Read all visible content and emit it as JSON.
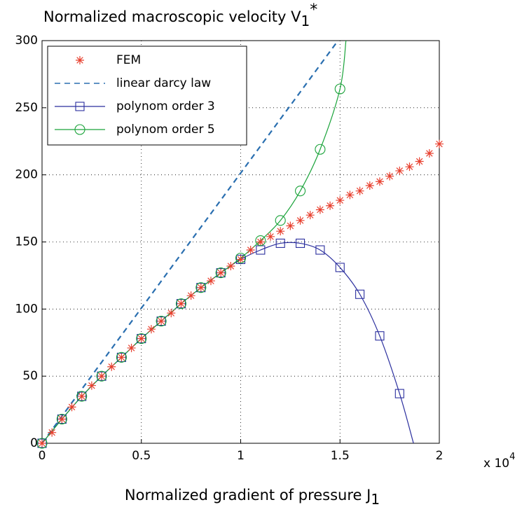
{
  "chart_data": {
    "type": "line",
    "title": "Normalized macroscopic velocity V",
    "title_subscript": "1",
    "title_superscript": "*",
    "xlabel": "Normalized gradient of pressure J",
    "xlabel_subscript": "1",
    "x_multiplier": "x 10",
    "x_multiplier_exponent": "4",
    "xlim": [
      0,
      2
    ],
    "xticks": [
      0,
      0.5,
      1,
      1.5,
      2
    ],
    "ylim": [
      0,
      300
    ],
    "yticks": [
      0,
      50,
      100,
      150,
      200,
      250,
      300
    ],
    "grid": true,
    "legend": "upper left",
    "series": [
      {
        "name": "FEM",
        "color": "#e8402f",
        "marker": "asterisk",
        "line": "none",
        "x": [
          0,
          0.05,
          0.1,
          0.15,
          0.2,
          0.25,
          0.3,
          0.35,
          0.4,
          0.45,
          0.5,
          0.55,
          0.6,
          0.65,
          0.7,
          0.75,
          0.8,
          0.85,
          0.9,
          0.95,
          1,
          1.05,
          1.1,
          1.15,
          1.2,
          1.25,
          1.3,
          1.35,
          1.4,
          1.45,
          1.5,
          1.55,
          1.6,
          1.65,
          1.7,
          1.75,
          1.8,
          1.85,
          1.9,
          1.95,
          2
        ],
        "values": [
          0,
          8,
          18,
          27,
          35,
          43,
          50,
          57,
          64,
          71,
          78,
          85,
          91,
          97,
          104,
          110,
          116,
          121,
          127,
          132,
          137,
          144,
          150,
          154,
          158,
          162,
          166,
          170,
          174,
          177,
          181,
          185,
          188,
          192,
          195,
          199,
          203,
          206,
          210,
          216,
          223
        ]
      },
      {
        "name": "linear darcy law",
        "color": "#2a6fb0",
        "marker": "none",
        "line": "dashed",
        "x": [
          0,
          1.49
        ],
        "values": [
          0,
          300
        ]
      },
      {
        "name": "polynom order 3",
        "color": "#2b2f9e",
        "marker": "square",
        "line": "solid",
        "x": [
          0,
          0.1,
          0.2,
          0.3,
          0.4,
          0.5,
          0.6,
          0.7,
          0.8,
          0.9,
          1,
          1.1,
          1.2,
          1.3,
          1.4,
          1.5,
          1.6,
          1.7,
          1.8
        ],
        "values": [
          0,
          18,
          35,
          50,
          64,
          78,
          91,
          104,
          116,
          127,
          137,
          144,
          149,
          149,
          144,
          131,
          111,
          80,
          37
        ],
        "line_end": [
          1.87,
          0
        ]
      },
      {
        "name": "polynom order 5",
        "color": "#1aa33a",
        "marker": "circle",
        "line": "solid",
        "x": [
          0,
          0.1,
          0.2,
          0.3,
          0.4,
          0.5,
          0.6,
          0.7,
          0.8,
          0.9,
          1,
          1.1,
          1.2,
          1.3,
          1.4,
          1.5
        ],
        "values": [
          0,
          18,
          35,
          50,
          64,
          78,
          91,
          104,
          116,
          127,
          138,
          151,
          166,
          188,
          219,
          264
        ],
        "line_end": [
          1.53,
          300
        ]
      }
    ]
  }
}
